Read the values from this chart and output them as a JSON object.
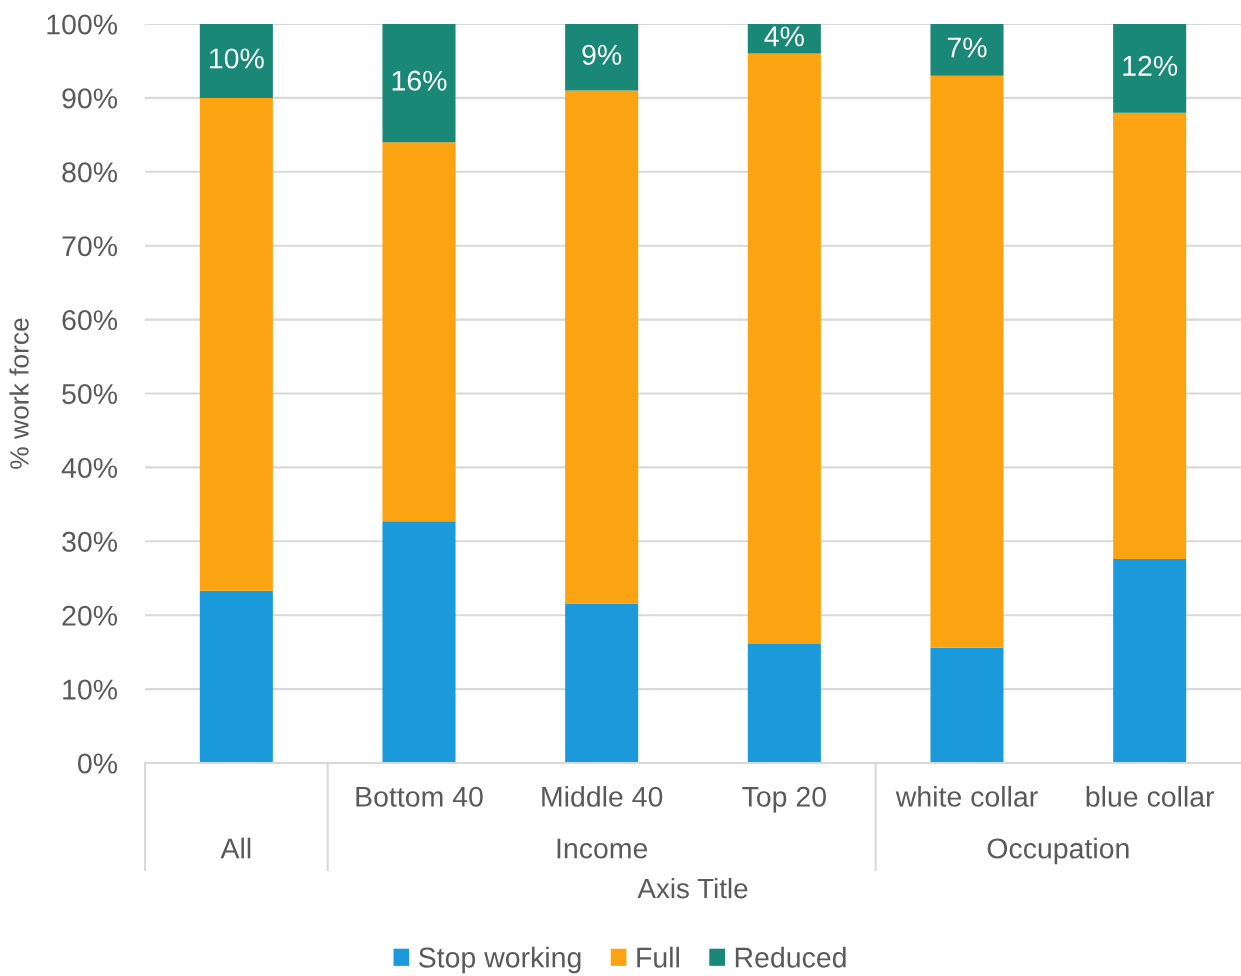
{
  "chart_data": {
    "type": "bar",
    "stacked": true,
    "categories": [
      null,
      "Bottom 40",
      "Middle 40",
      "Top 20",
      "white collar",
      "blue collar"
    ],
    "series": [
      {
        "name": "Stop working",
        "color": "#1b9adb",
        "values": [
          23.3,
          32.7,
          21.6,
          16.1,
          15.6,
          27.6
        ]
      },
      {
        "name": "Full",
        "color": "#fca311",
        "values": [
          66.7,
          51.3,
          69.4,
          79.9,
          77.4,
          60.4
        ]
      },
      {
        "name": "Reduced",
        "color": "#1a8877",
        "values": [
          10,
          16,
          9,
          4,
          7,
          12
        ],
        "value_labels": [
          "10%",
          "16%",
          "9%",
          "4%",
          "7%",
          "12%"
        ]
      }
    ],
    "xlabel": "Axis Title",
    "ylabel": "% work force",
    "annotations": [
      "All",
      "Income",
      "Occupation"
    ],
    "ylim": [
      0,
      100
    ],
    "yticks": [
      {
        "value": 0,
        "label": "0%"
      },
      {
        "value": 10,
        "label": "10%"
      },
      {
        "value": 20,
        "label": "20%"
      },
      {
        "value": 30,
        "label": "30%"
      },
      {
        "value": 40,
        "label": "40%"
      },
      {
        "value": 50,
        "label": "50%"
      },
      {
        "value": 60,
        "label": "60%"
      },
      {
        "value": 70,
        "label": "70%"
      },
      {
        "value": 80,
        "label": "80%"
      },
      {
        "value": 90,
        "label": "90%"
      },
      {
        "value": 100,
        "label": "100%"
      }
    ],
    "grid": "y",
    "legend": "bottom"
  }
}
